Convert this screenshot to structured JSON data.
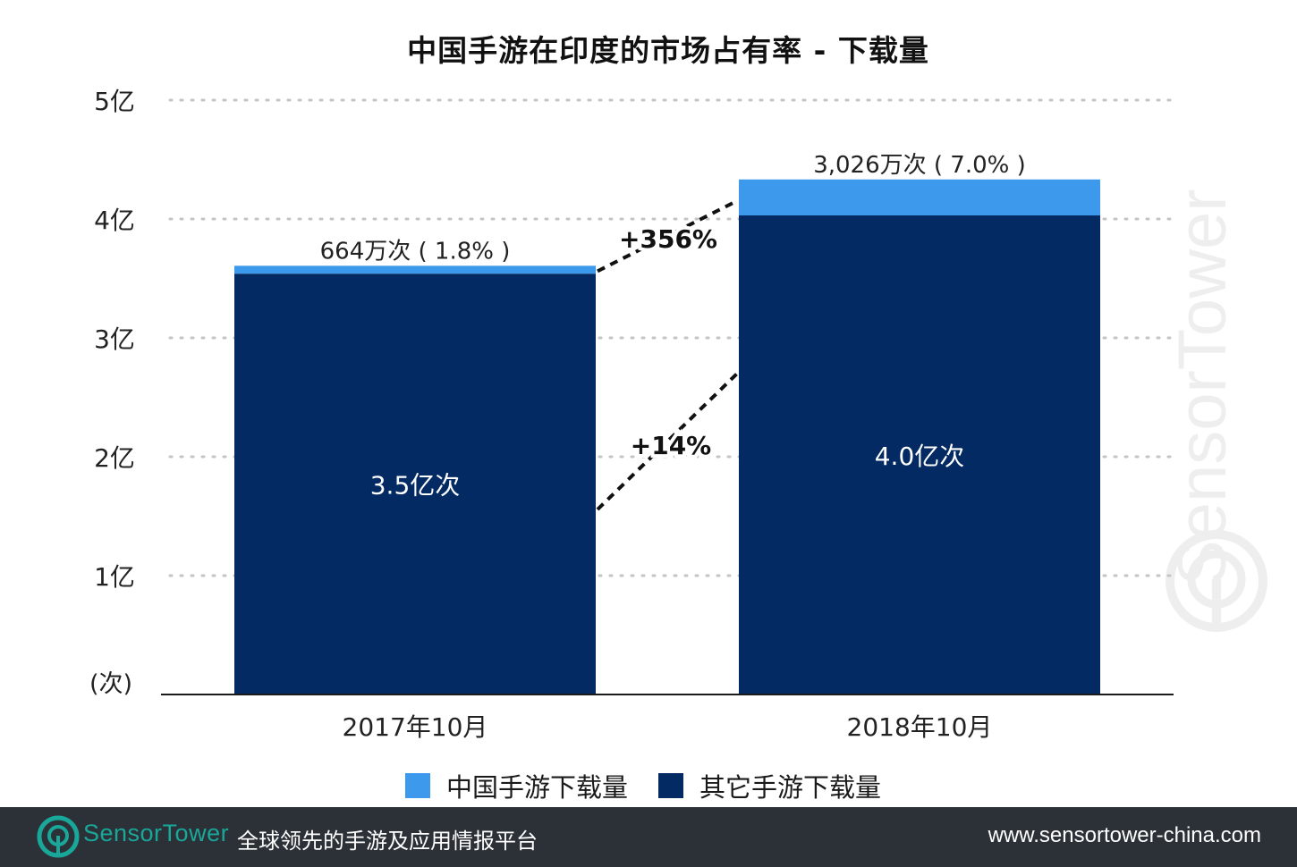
{
  "chart_data": {
    "type": "bar",
    "stacked": true,
    "title": "中国手游在印度的市场占有率 - 下载量",
    "categories": [
      "2017年10月",
      "2018年10月"
    ],
    "y_unit_label": "(次)",
    "y_ticks": [
      {
        "value": 100000000,
        "label": "1亿"
      },
      {
        "value": 200000000,
        "label": "2亿"
      },
      {
        "value": 300000000,
        "label": "3亿"
      },
      {
        "value": 400000000,
        "label": "4亿"
      },
      {
        "value": 500000000,
        "label": "5亿"
      }
    ],
    "ylim": [
      0,
      500000000
    ],
    "grid": true,
    "legend_position": "bottom",
    "series": [
      {
        "name": "其它手游下载量",
        "color": "#032a62",
        "values": [
          354000000,
          403000000
        ],
        "data_labels": [
          "3.5亿次",
          "4.0亿次"
        ]
      },
      {
        "name": "中国手游下载量",
        "color": "#3d99ec",
        "values": [
          6640000,
          30260000
        ],
        "data_labels": [
          "664万次 ( 1.8% )",
          "3,026万次 ( 7.0% )"
        ]
      }
    ],
    "annotations": [
      {
        "text": "+356%",
        "series": "中国手游下载量"
      },
      {
        "text": "+14%",
        "series": "其它手游下载量"
      }
    ]
  },
  "legend": {
    "items": [
      {
        "label": "中国手游下载量",
        "color": "#3d99ec"
      },
      {
        "label": "其它手游下载量",
        "color": "#032a62"
      }
    ]
  },
  "footer": {
    "brand": "SensorTower",
    "tagline": "全球领先的手游及应用情报平台",
    "url": "www.sensortower-china.com",
    "brand_color": "#19a799",
    "background": "#2c3138"
  },
  "watermark": {
    "text": "SensorTower"
  }
}
